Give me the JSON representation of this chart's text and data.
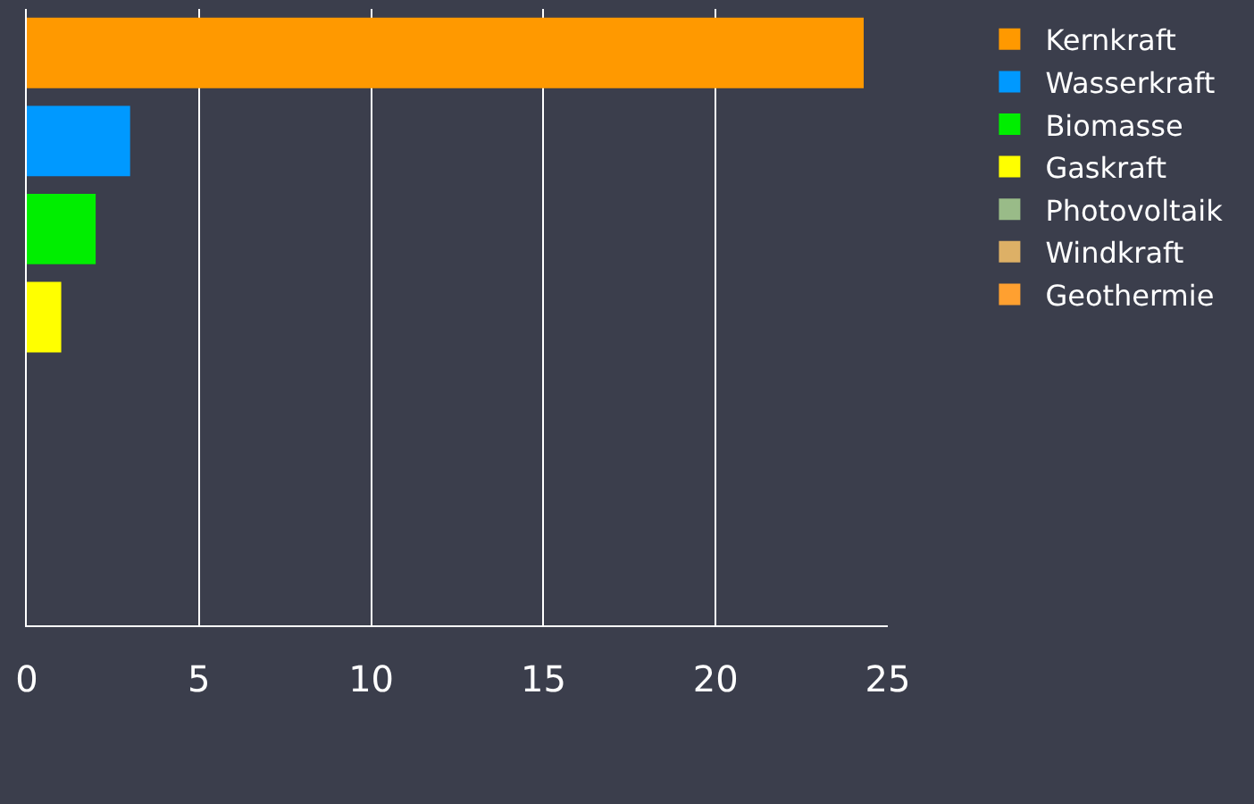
{
  "chart_data": {
    "type": "bar",
    "orientation": "horizontal",
    "categories": [
      null,
      null,
      null,
      null,
      null,
      null,
      null
    ],
    "series": [
      {
        "name": "Kernkraft",
        "color": "#ff9900",
        "values": [
          24.3,
          null,
          null,
          null,
          null,
          null,
          null
        ]
      },
      {
        "name": "Wasserkraft",
        "color": "#0099ff",
        "values": [
          null,
          3,
          null,
          null,
          null,
          null,
          null
        ]
      },
      {
        "name": "Biomasse",
        "color": "#00ee00",
        "values": [
          null,
          null,
          2,
          null,
          null,
          null,
          null
        ]
      },
      {
        "name": "Gaskraft",
        "color": "#ffff00",
        "values": [
          null,
          null,
          null,
          1,
          null,
          null,
          null
        ]
      },
      {
        "name": "Photovoltaik",
        "color": "#99bb88",
        "values": [
          null,
          null,
          null,
          null,
          0,
          null,
          null
        ]
      },
      {
        "name": "Windkraft",
        "color": "#ddb066",
        "values": [
          null,
          null,
          null,
          null,
          null,
          0,
          null
        ]
      },
      {
        "name": "Geothermie",
        "color": "#ffa030",
        "values": [
          null,
          null,
          null,
          null,
          null,
          null,
          0
        ]
      }
    ],
    "xlim": [
      0,
      25
    ],
    "xticks": [
      0,
      5,
      10,
      15,
      20,
      25
    ],
    "grid": "x",
    "legend": "top right"
  }
}
